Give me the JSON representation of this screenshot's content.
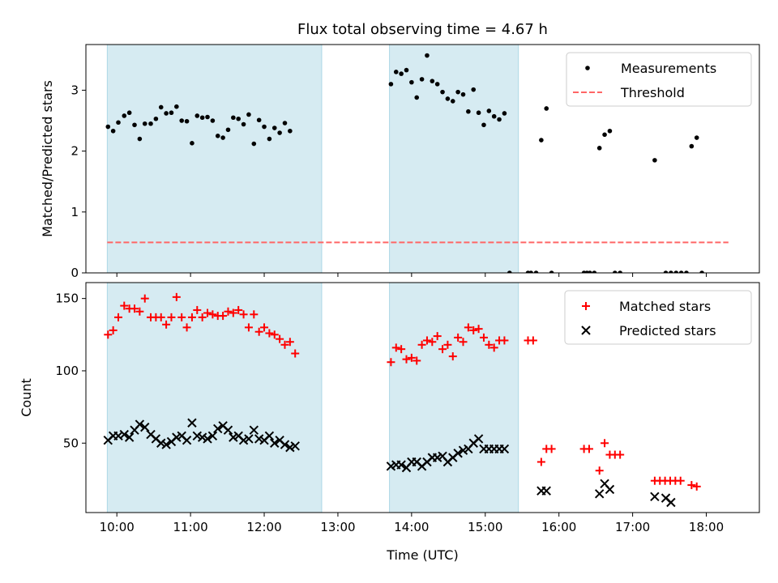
{
  "chart_data": [
    {
      "type": "scatter",
      "title": "Flux total observing time = 4.67 h",
      "ylabel": "Matched/Predicted stars",
      "xlabel": "",
      "xlim": [
        9.58,
        18.72
      ],
      "ylim": [
        0,
        3.75
      ],
      "yticks": [
        0,
        1,
        2,
        3
      ],
      "xticks": [
        10,
        11,
        12,
        13,
        14,
        15,
        16,
        17,
        18
      ],
      "xtick_labels": [
        "10:00",
        "11:00",
        "12:00",
        "13:00",
        "14:00",
        "15:00",
        "16:00",
        "17:00",
        "18:00"
      ],
      "show_xtick_labels": false,
      "shaded_spans": [
        [
          9.87,
          12.78
        ],
        [
          13.7,
          15.45
        ]
      ],
      "shade_color": "#add8e6",
      "legend": {
        "placement": "top-right",
        "entries": [
          "Measurements",
          "Threshold"
        ]
      },
      "series": [
        {
          "name": "Measurements",
          "marker": "dot",
          "color": "#000000",
          "points": [
            [
              9.88,
              2.4
            ],
            [
              9.95,
              2.33
            ],
            [
              10.02,
              2.47
            ],
            [
              10.1,
              2.58
            ],
            [
              10.17,
              2.63
            ],
            [
              10.24,
              2.43
            ],
            [
              10.31,
              2.2
            ],
            [
              10.38,
              2.45
            ],
            [
              10.46,
              2.45
            ],
            [
              10.53,
              2.53
            ],
            [
              10.6,
              2.72
            ],
            [
              10.67,
              2.62
            ],
            [
              10.74,
              2.63
            ],
            [
              10.81,
              2.73
            ],
            [
              10.88,
              2.5
            ],
            [
              10.95,
              2.49
            ],
            [
              11.02,
              2.13
            ],
            [
              11.09,
              2.58
            ],
            [
              11.16,
              2.55
            ],
            [
              11.23,
              2.56
            ],
            [
              11.3,
              2.5
            ],
            [
              11.37,
              2.25
            ],
            [
              11.44,
              2.22
            ],
            [
              11.51,
              2.35
            ],
            [
              11.58,
              2.55
            ],
            [
              11.65,
              2.53
            ],
            [
              11.72,
              2.44
            ],
            [
              11.79,
              2.6
            ],
            [
              11.86,
              2.12
            ],
            [
              11.93,
              2.51
            ],
            [
              12.0,
              2.4
            ],
            [
              12.07,
              2.2
            ],
            [
              12.14,
              2.38
            ],
            [
              12.21,
              2.3
            ],
            [
              12.28,
              2.46
            ],
            [
              12.35,
              2.33
            ],
            [
              13.72,
              3.1
            ],
            [
              13.79,
              3.3
            ],
            [
              13.86,
              3.27
            ],
            [
              13.93,
              3.33
            ],
            [
              14.0,
              3.13
            ],
            [
              14.07,
              2.88
            ],
            [
              14.14,
              3.18
            ],
            [
              14.21,
              3.57
            ],
            [
              14.28,
              3.15
            ],
            [
              14.35,
              3.1
            ],
            [
              14.42,
              2.97
            ],
            [
              14.49,
              2.86
            ],
            [
              14.56,
              2.82
            ],
            [
              14.63,
              2.97
            ],
            [
              14.7,
              2.93
            ],
            [
              14.77,
              2.65
            ],
            [
              14.84,
              3.01
            ],
            [
              14.91,
              2.63
            ],
            [
              14.98,
              2.43
            ],
            [
              15.05,
              2.66
            ],
            [
              15.12,
              2.57
            ],
            [
              15.19,
              2.52
            ],
            [
              15.26,
              2.62
            ],
            [
              15.33,
              0
            ],
            [
              15.58,
              0
            ],
            [
              15.62,
              0
            ],
            [
              15.69,
              0
            ],
            [
              15.76,
              2.18
            ],
            [
              15.83,
              2.7
            ],
            [
              15.9,
              0
            ],
            [
              16.34,
              0
            ],
            [
              16.38,
              0
            ],
            [
              16.42,
              0
            ],
            [
              16.48,
              0
            ],
            [
              16.55,
              2.05
            ],
            [
              16.62,
              2.27
            ],
            [
              16.69,
              2.33
            ],
            [
              16.76,
              0
            ],
            [
              16.83,
              0
            ],
            [
              17.3,
              1.85
            ],
            [
              17.45,
              0
            ],
            [
              17.52,
              0
            ],
            [
              17.59,
              0
            ],
            [
              17.66,
              0
            ],
            [
              17.73,
              0
            ],
            [
              17.8,
              2.08
            ],
            [
              17.87,
              2.22
            ],
            [
              17.94,
              0
            ]
          ]
        },
        {
          "name": "Threshold",
          "marker": "dashed-line",
          "color": "#ff6666",
          "points": [
            [
              9.87,
              0.5
            ],
            [
              18.3,
              0.5
            ]
          ]
        }
      ]
    },
    {
      "type": "scatter",
      "title": "",
      "ylabel": "Count",
      "xlabel": "Time (UTC)",
      "xlim": [
        9.58,
        18.72
      ],
      "ylim": [
        2,
        161
      ],
      "yticks": [
        50,
        100,
        150
      ],
      "xticks": [
        10,
        11,
        12,
        13,
        14,
        15,
        16,
        17,
        18
      ],
      "xtick_labels": [
        "10:00",
        "11:00",
        "12:00",
        "13:00",
        "14:00",
        "15:00",
        "16:00",
        "17:00",
        "18:00"
      ],
      "show_xtick_labels": true,
      "shaded_spans": [
        [
          9.87,
          12.78
        ],
        [
          13.7,
          15.45
        ]
      ],
      "shade_color": "#add8e6",
      "legend": {
        "placement": "top-right",
        "entries": [
          "Matched stars",
          "Predicted stars"
        ]
      },
      "series": [
        {
          "name": "Matched stars",
          "marker": "plus",
          "color": "#ff0000",
          "points": [
            [
              9.88,
              125
            ],
            [
              9.95,
              128
            ],
            [
              10.02,
              137
            ],
            [
              10.1,
              145
            ],
            [
              10.17,
              143
            ],
            [
              10.24,
              143
            ],
            [
              10.31,
              141
            ],
            [
              10.38,
              150
            ],
            [
              10.46,
              137
            ],
            [
              10.53,
              137
            ],
            [
              10.6,
              137
            ],
            [
              10.67,
              132
            ],
            [
              10.74,
              137
            ],
            [
              10.81,
              151
            ],
            [
              10.88,
              137
            ],
            [
              10.95,
              130
            ],
            [
              11.02,
              137
            ],
            [
              11.09,
              142
            ],
            [
              11.16,
              137
            ],
            [
              11.23,
              140
            ],
            [
              11.3,
              139
            ],
            [
              11.37,
              138
            ],
            [
              11.44,
              138
            ],
            [
              11.51,
              141
            ],
            [
              11.58,
              140
            ],
            [
              11.65,
              142
            ],
            [
              11.72,
              139
            ],
            [
              11.79,
              130
            ],
            [
              11.86,
              139
            ],
            [
              11.93,
              127
            ],
            [
              12.0,
              130
            ],
            [
              12.07,
              126
            ],
            [
              12.14,
              125
            ],
            [
              12.21,
              122
            ],
            [
              12.28,
              118
            ],
            [
              12.35,
              120
            ],
            [
              12.42,
              112
            ],
            [
              13.72,
              106
            ],
            [
              13.79,
              116
            ],
            [
              13.86,
              115
            ],
            [
              13.93,
              108
            ],
            [
              14.0,
              109
            ],
            [
              14.07,
              107
            ],
            [
              14.14,
              118
            ],
            [
              14.21,
              121
            ],
            [
              14.28,
              120
            ],
            [
              14.35,
              124
            ],
            [
              14.42,
              115
            ],
            [
              14.49,
              118
            ],
            [
              14.56,
              110
            ],
            [
              14.63,
              123
            ],
            [
              14.7,
              120
            ],
            [
              14.77,
              130
            ],
            [
              14.84,
              128
            ],
            [
              14.91,
              129
            ],
            [
              14.98,
              123
            ],
            [
              15.05,
              118
            ],
            [
              15.12,
              116
            ],
            [
              15.19,
              121
            ],
            [
              15.26,
              121
            ],
            [
              15.58,
              121
            ],
            [
              15.65,
              121
            ],
            [
              15.76,
              37
            ],
            [
              15.83,
              46
            ],
            [
              15.9,
              46
            ],
            [
              16.34,
              46
            ],
            [
              16.41,
              46
            ],
            [
              16.55,
              31
            ],
            [
              16.62,
              50
            ],
            [
              16.69,
              42
            ],
            [
              16.76,
              42
            ],
            [
              16.83,
              42
            ],
            [
              17.3,
              24
            ],
            [
              17.37,
              24
            ],
            [
              17.44,
              24
            ],
            [
              17.51,
              24
            ],
            [
              17.58,
              24
            ],
            [
              17.65,
              24
            ],
            [
              17.8,
              21
            ],
            [
              17.87,
              20
            ]
          ]
        },
        {
          "name": "Predicted stars",
          "marker": "x",
          "color": "#000000",
          "points": [
            [
              9.88,
              52
            ],
            [
              9.95,
              55
            ],
            [
              10.02,
              55
            ],
            [
              10.1,
              56
            ],
            [
              10.17,
              54
            ],
            [
              10.24,
              59
            ],
            [
              10.31,
              63
            ],
            [
              10.38,
              61
            ],
            [
              10.46,
              56
            ],
            [
              10.53,
              53
            ],
            [
              10.6,
              50
            ],
            [
              10.67,
              49
            ],
            [
              10.74,
              51
            ],
            [
              10.81,
              54
            ],
            [
              10.88,
              55
            ],
            [
              10.95,
              52
            ],
            [
              11.02,
              64
            ],
            [
              11.09,
              55
            ],
            [
              11.16,
              54
            ],
            [
              11.23,
              53
            ],
            [
              11.3,
              55
            ],
            [
              11.37,
              60
            ],
            [
              11.44,
              62
            ],
            [
              11.51,
              59
            ],
            [
              11.58,
              54
            ],
            [
              11.65,
              55
            ],
            [
              11.72,
              52
            ],
            [
              11.79,
              53
            ],
            [
              11.86,
              59
            ],
            [
              11.93,
              53
            ],
            [
              12.0,
              52
            ],
            [
              12.07,
              55
            ],
            [
              12.14,
              50
            ],
            [
              12.21,
              52
            ],
            [
              12.28,
              49
            ],
            [
              12.35,
              47
            ],
            [
              12.42,
              48
            ],
            [
              13.72,
              34
            ],
            [
              13.79,
              35
            ],
            [
              13.86,
              35
            ],
            [
              13.93,
              33
            ],
            [
              14.0,
              37
            ],
            [
              14.07,
              37
            ],
            [
              14.14,
              34
            ],
            [
              14.21,
              37
            ],
            [
              14.28,
              40
            ],
            [
              14.35,
              40
            ],
            [
              14.42,
              41
            ],
            [
              14.49,
              37
            ],
            [
              14.56,
              40
            ],
            [
              14.63,
              43
            ],
            [
              14.7,
              45
            ],
            [
              14.77,
              46
            ],
            [
              14.84,
              50
            ],
            [
              14.91,
              53
            ],
            [
              14.98,
              46
            ],
            [
              15.05,
              46
            ],
            [
              15.12,
              46
            ],
            [
              15.19,
              46
            ],
            [
              15.26,
              46
            ],
            [
              15.76,
              17
            ],
            [
              15.83,
              17
            ],
            [
              16.55,
              15
            ],
            [
              16.62,
              22
            ],
            [
              16.69,
              18
            ],
            [
              17.3,
              13
            ],
            [
              17.45,
              12
            ],
            [
              17.52,
              9
            ]
          ]
        }
      ]
    }
  ]
}
